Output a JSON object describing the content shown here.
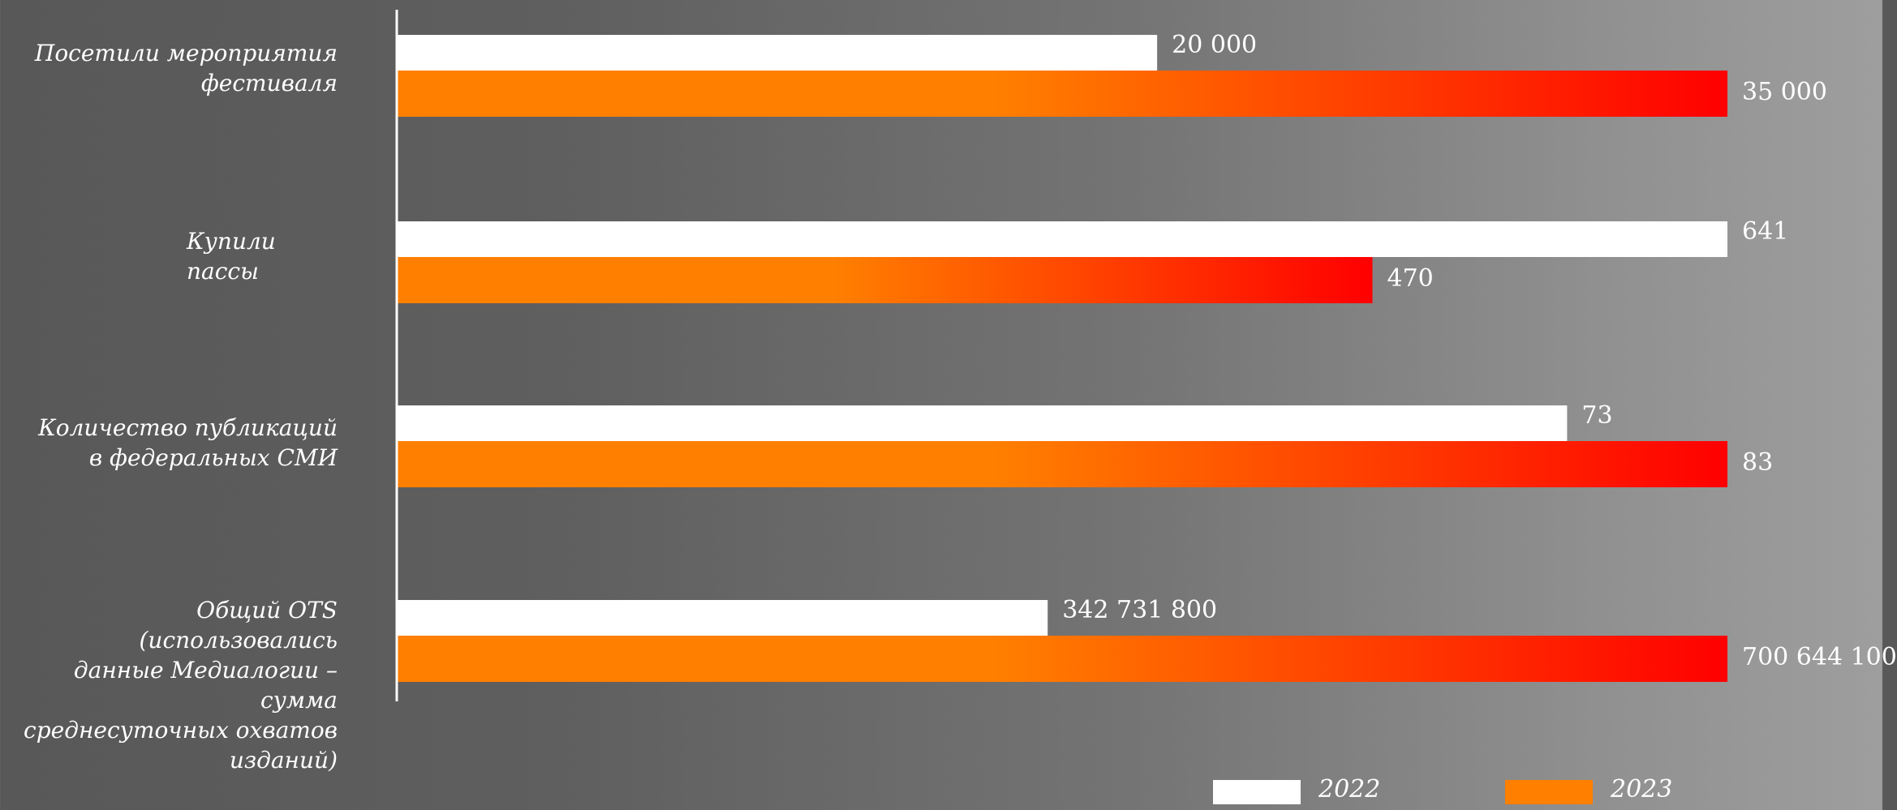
{
  "chart_data": {
    "type": "bar",
    "orientation": "horizontal",
    "categories": [
      "Посетили мероприятия\nфестиваля",
      "Купили\nпассы",
      "Количество публикаций\nв федеральных СМИ",
      "Общий OTS  (использовались\nданные Медиалогии – сумма\nсреднесуточных охватов\nизданий)"
    ],
    "series": [
      {
        "name": "2022",
        "color": "#ffffff",
        "values": [
          20000,
          641,
          73,
          342731800
        ],
        "labels": [
          "20 000",
          "641",
          "73",
          "342 731 800"
        ]
      },
      {
        "name": "2023",
        "color": "#ff7f00",
        "color_end": "#ff0000",
        "values": [
          35000,
          470,
          83,
          700644100
        ],
        "labels": [
          "35 000",
          "470",
          "83",
          "700 644 100"
        ]
      }
    ],
    "legend": {
      "placement": "bottom",
      "entries": [
        "2022",
        "2023"
      ]
    },
    "title": "",
    "xlabel": "",
    "ylabel": "",
    "grid": false
  }
}
